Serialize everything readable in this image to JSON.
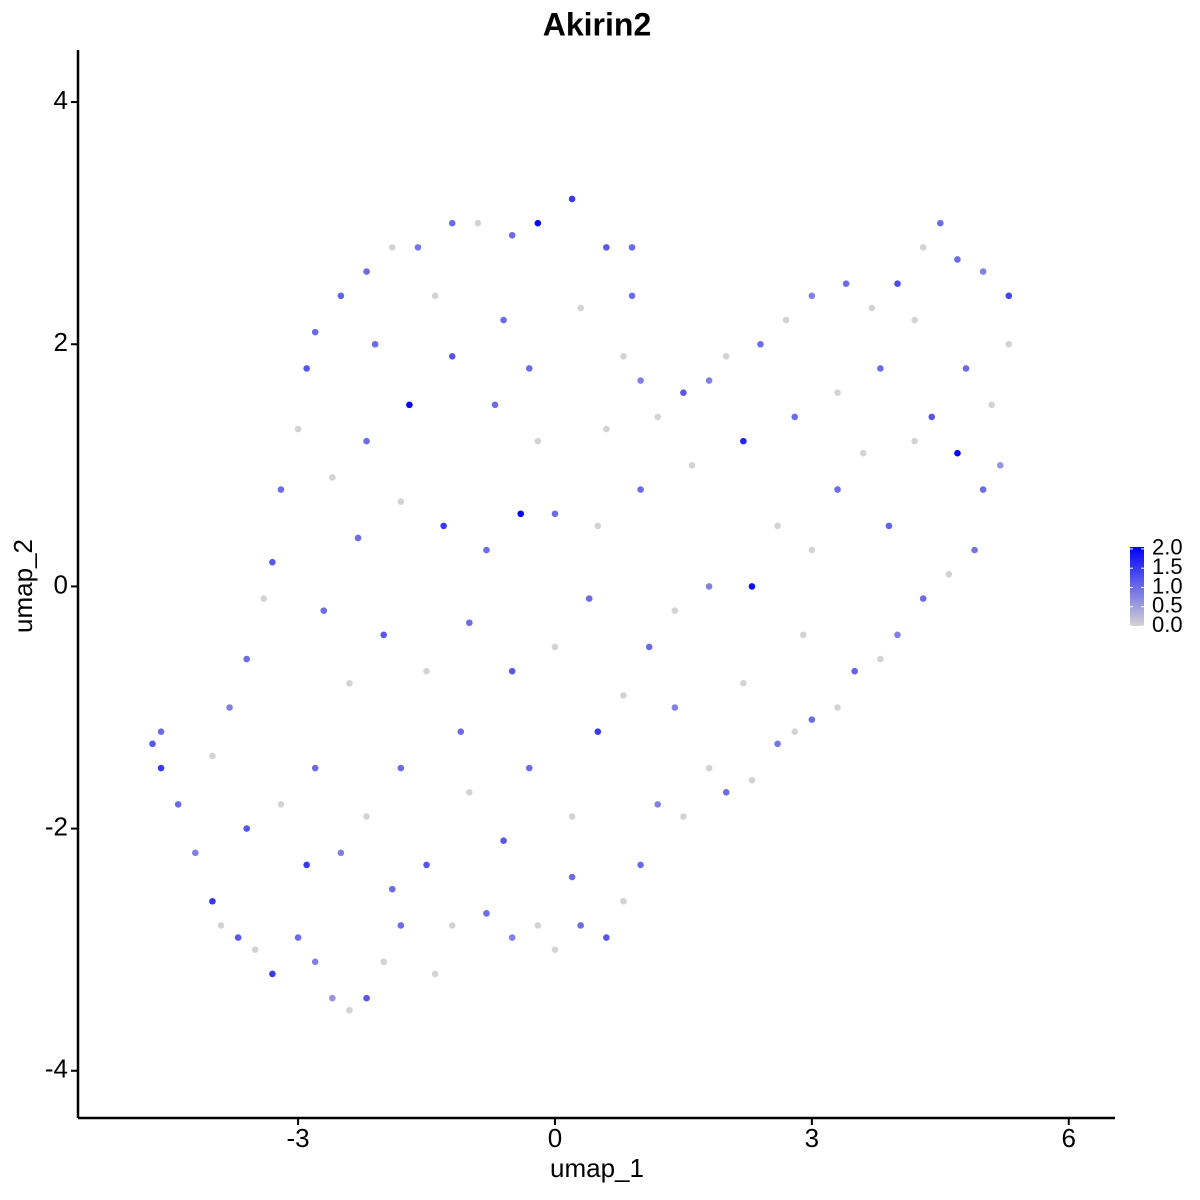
{
  "chart_data": {
    "type": "scatter",
    "title": "Akirin2",
    "x_label": "umap_1",
    "y_label": "umap_2",
    "xlim": [
      -5.57,
      6.54
    ],
    "ylim": [
      -4.39,
      4.43
    ],
    "xticks": [
      -3,
      0,
      3,
      6
    ],
    "yticks": [
      -4,
      -2,
      0,
      2,
      4
    ],
    "colorbar": {
      "lim": [
        0,
        2.05
      ],
      "low_color": "#d3d3d3",
      "high_color": "#0000ff",
      "ticks": [
        {
          "value": 0,
          "label": "0.0"
        },
        {
          "value": 0.5,
          "label": "0.5"
        },
        {
          "value": 1,
          "label": "1.0"
        },
        {
          "value": 1.5,
          "label": "1.5"
        },
        {
          "value": 2,
          "label": "2.0"
        }
      ]
    },
    "series": [
      {
        "x": [
          -4.7,
          -4.6,
          -4.6,
          -4.4,
          -4.2,
          -4.0,
          -3.9,
          -3.7,
          -3.5,
          -3.3,
          -3.0,
          -2.8,
          -2.6,
          -2.4,
          -2.2,
          -2.0,
          -1.8,
          -1.4,
          -1.2,
          -0.8,
          -0.5,
          -0.2,
          0,
          0.3,
          0.6,
          0.8,
          1.0,
          1.2,
          1.5,
          1.8,
          2.0,
          2.3,
          2.6,
          2.8,
          3.0,
          3.3,
          3.5,
          3.8,
          4.0,
          4.3,
          4.6,
          4.9,
          5.0,
          5.2,
          5.1,
          5.3,
          5.3,
          5.0,
          4.7,
          4.5,
          4.3,
          4.0,
          3.7,
          3.4,
          3.0,
          2.7,
          2.4,
          2.0,
          1.8,
          1.5,
          1.2,
          1.0,
          0.8,
          0.9,
          0.9,
          0.6,
          0.2,
          -0.2,
          -0.5,
          -0.9,
          -1.2,
          -1.6,
          -1.9,
          -2.2,
          -2.5,
          -2.8,
          -2.9,
          -3.0,
          -3.2,
          -3.3,
          -3.4,
          -3.6,
          -3.8,
          -4.0,
          -3.6,
          -3.2,
          -2.8,
          -2.5,
          -2.2,
          -1.8,
          -1.5,
          -1.0,
          -0.6,
          -0.3,
          0.2,
          0.5,
          0.8,
          1.1,
          1.4,
          1.8,
          2.3,
          2.6,
          3.0,
          3.3,
          3.6,
          3.9,
          4.2,
          4.4,
          4.7,
          4.8,
          4.2,
          3.8,
          3.3,
          2.8,
          2.2,
          1.6,
          1.0,
          0.5,
          0,
          -0.4,
          -0.8,
          -1.3,
          -1.8,
          -2.3,
          -2.7,
          -2.4,
          -2.0,
          -1.5,
          -1.0,
          -0.5,
          0,
          0.4,
          -0.2,
          -0.7,
          -1.2,
          -1.7,
          -2.2,
          -2.6,
          -2.1,
          -1.4,
          -0.6,
          0.3,
          -0.3,
          0.6,
          -1.9,
          -2.9,
          0.2,
          1.4,
          2.2,
          2.9,
          -1.1
        ],
        "values": [
          -1.3,
          -1.2,
          -1.5,
          -1.8,
          -2.2,
          -2.6,
          -2.8,
          -2.9,
          -3.0,
          -3.2,
          -2.9,
          -3.1,
          -3.4,
          -3.5,
          -3.4,
          -3.1,
          -2.8,
          -3.2,
          -2.8,
          -2.7,
          -2.9,
          -2.8,
          -3.0,
          -2.8,
          -2.9,
          -2.6,
          -2.3,
          -1.8,
          -1.9,
          -1.5,
          -1.7,
          -1.6,
          -1.3,
          -1.2,
          -1.1,
          -1.0,
          -0.7,
          -0.6,
          -0.4,
          -0.1,
          0.1,
          0.3,
          0.8,
          1.0,
          1.5,
          2.0,
          2.4,
          2.6,
          2.7,
          3.0,
          2.8,
          2.5,
          2.3,
          2.5,
          2.4,
          2.2,
          2.0,
          1.9,
          1.7,
          1.6,
          1.4,
          1.7,
          1.9,
          2.4,
          2.8,
          2.8,
          3.2,
          3.0,
          2.9,
          3.0,
          3.0,
          2.8,
          2.8,
          2.6,
          2.4,
          2.1,
          1.8,
          1.3,
          0.8,
          0.2,
          -0.1,
          -0.6,
          -1.0,
          -1.4,
          -2.0,
          -1.8,
          -1.5,
          -2.2,
          -1.9,
          -1.5,
          -2.3,
          -1.7,
          -2.1,
          -1.5,
          -1.9,
          -1.2,
          -0.9,
          -0.5,
          -0.2,
          0,
          0,
          0.5,
          0.3,
          0.8,
          1.1,
          0.5,
          1.2,
          1.4,
          1.1,
          1.8,
          2.2,
          1.8,
          1.6,
          1.4,
          1.2,
          1.0,
          0.8,
          0.5,
          0.6,
          0.6,
          0.3,
          0.5,
          0.7,
          0.4,
          -0.2,
          -0.8,
          -0.4,
          -0.7,
          -0.3,
          -0.7,
          -0.5,
          -0.1,
          1.2,
          1.5,
          1.9,
          1.5,
          1.2,
          0.9,
          2.0,
          2.4,
          2.2,
          2.3,
          1.8,
          1.3,
          -2.5,
          -2.3,
          -2.4,
          -1.0,
          -0.8,
          -0.4,
          -1.2
        ],
        "expression": [
          1.2,
          1.0,
          1.5,
          1.0,
          0.8,
          1.5,
          0,
          1.2,
          0,
          1.5,
          1.0,
          0.8,
          0.6,
          0,
          1.2,
          0,
          1.0,
          0,
          0,
          1.0,
          0.8,
          0,
          0,
          1.0,
          1.2,
          0,
          1.0,
          0.8,
          0,
          0,
          1.0,
          0,
          0.9,
          0,
          1.0,
          0,
          1.1,
          0,
          0.8,
          1.0,
          0,
          0.9,
          1.0,
          0.6,
          0,
          0,
          1.4,
          0.8,
          1.0,
          1.0,
          0,
          1.3,
          0,
          1.0,
          0.8,
          0,
          1.0,
          0,
          0.8,
          1.2,
          0,
          0.8,
          0,
          1.0,
          1.0,
          1.2,
          1.5,
          2.0,
          1.0,
          0,
          1.0,
          0.9,
          0,
          1.0,
          1.1,
          1.0,
          1.2,
          0,
          1.0,
          1.2,
          0,
          1.0,
          0.8,
          0,
          1.2,
          0,
          1.0,
          0.8,
          0,
          1.0,
          1.2,
          0,
          1.2,
          1.0,
          0,
          1.5,
          0,
          1.0,
          0,
          0.8,
          1.9,
          0,
          0,
          1.0,
          0,
          1.1,
          0,
          1.2,
          2.0,
          1.0,
          0,
          1.0,
          0,
          1.0,
          1.7,
          0,
          1.0,
          0,
          1.0,
          2.0,
          1.0,
          1.5,
          0,
          1.0,
          1.0,
          0,
          1.2,
          0,
          1.0,
          1.2,
          0,
          1.0,
          0,
          1.0,
          1.2,
          2.0,
          1.0,
          0,
          1.0,
          0,
          1.0,
          0,
          1.0,
          0,
          1.0,
          1.5,
          1.0,
          0.8,
          0,
          0,
          1.0
        ]
      }
    ]
  }
}
